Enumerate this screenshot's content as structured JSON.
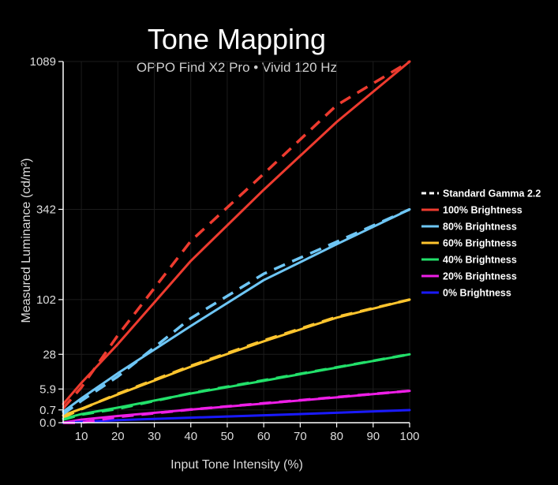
{
  "chart_data": {
    "type": "line",
    "title": "Tone Mapping",
    "subtitle": "OPPO Find X2 Pro • Vivid 120 Hz",
    "xlabel": "Input Tone Intensity (%)",
    "ylabel": "Measured Luminance (cd/m²)",
    "x_ticks": [
      "10",
      "20",
      "30",
      "40",
      "50",
      "60",
      "70",
      "80",
      "90",
      "100"
    ],
    "xlim": [
      5,
      100
    ],
    "y_scale": "gamma",
    "y_ticks": [
      "0.0",
      "0.7",
      "5.9",
      "28",
      "102",
      "342",
      "1089"
    ],
    "y_tick_values": [
      0,
      0.7,
      5.9,
      28,
      102,
      342,
      1089
    ],
    "ylim": [
      0,
      1089
    ],
    "legend_position": "right",
    "x": [
      5,
      10,
      20,
      40,
      60,
      80,
      100
    ],
    "series": [
      {
        "name": "Standard Gamma 2.2",
        "color": "#ffffff",
        "dashed": true,
        "values": [
          0.14,
          0.6,
          2.8,
          12.9,
          31.5,
          59,
          96
        ]
      },
      {
        "name": "100% Brightness",
        "color": "#ee3b2f",
        "dashed": false,
        "values": [
          1.6,
          8.5,
          38,
          186,
          415,
          728,
          1089
        ]
      },
      {
        "name": "80% Brightness",
        "color": "#6ec6f5",
        "dashed": false,
        "values": [
          0.5,
          2.9,
          13.7,
          60,
          141,
          231,
          342
        ]
      },
      {
        "name": "60% Brightness",
        "color": "#ffc52e",
        "dashed": false,
        "values": [
          0.2,
          0.85,
          4.0,
          18.0,
          41,
          72,
          102
        ]
      },
      {
        "name": "40% Brightness",
        "color": "#22e06a",
        "dashed": false,
        "values": [
          0.05,
          0.29,
          1.0,
          4.3,
          9.5,
          17.4,
          28
        ]
      },
      {
        "name": "20% Brightness",
        "color": "#ee1ee6",
        "dashed": false,
        "values": [
          0.0,
          0.03,
          0.17,
          0.74,
          1.7,
          3.15,
          5.2
        ]
      },
      {
        "name": "0% Brightness",
        "color": "#1a1aff",
        "dashed": false,
        "values": [
          0.0,
          0.002,
          0.02,
          0.09,
          0.21,
          0.4,
          0.68
        ]
      }
    ],
    "dashed_references": [
      {
        "for": "100% Brightness",
        "color": "#ee3b2f",
        "values": [
          0.9,
          6.5,
          48,
          240,
          480,
          820,
          1089
        ]
      },
      {
        "for": "80% Brightness",
        "color": "#6ec6f5",
        "values": [
          0.3,
          2.3,
          11.8,
          71,
          155,
          238,
          342
        ]
      },
      {
        "for": "60% Brightness",
        "color": "#ffc52e",
        "values": [
          0.1,
          0.8,
          4.2,
          18.6,
          42,
          73,
          102
        ]
      },
      {
        "for": "40% Brightness",
        "color": "#22e06a",
        "values": [
          0.03,
          0.26,
          0.85,
          4.4,
          9.8,
          17.6,
          28
        ]
      },
      {
        "for": "20% Brightness",
        "color": "#ee1ee6",
        "values": [
          0.0,
          0.0,
          0.12,
          0.75,
          1.75,
          3.2,
          5.2
        ]
      }
    ]
  }
}
